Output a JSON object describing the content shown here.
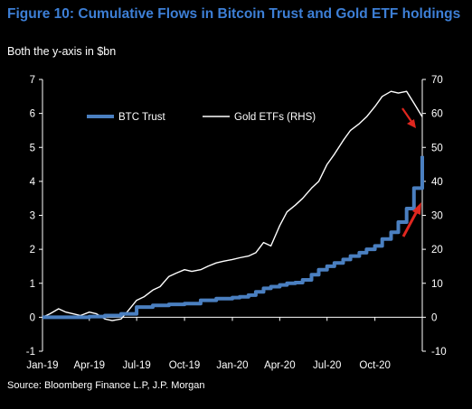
{
  "title": "Figure 10: Cumulative Flows in Bitcoin Trust and Gold ETF holdings",
  "subtitle": "Both the y-axis in $bn",
  "source": "Source: Bloomberg Finance L.P, J.P. Morgan",
  "colors": {
    "btc": "#4a7fc0",
    "gold": "#ffffff",
    "title": "#3d7fd6",
    "arrow": "#e0271f"
  },
  "chart_data": {
    "type": "line",
    "x_range": [
      "2019-01-01",
      "2020-12-31"
    ],
    "x_tick_labels": [
      "Jan-19",
      "Apr-19",
      "Jul-19",
      "Oct-19",
      "Jan-20",
      "Apr-20",
      "Jul-20",
      "Oct-20"
    ],
    "x_tick_dates": [
      "2019-01-01",
      "2019-04-01",
      "2019-07-01",
      "2019-10-01",
      "2020-01-01",
      "2020-04-01",
      "2020-07-01",
      "2020-10-01"
    ],
    "ylim_left": [
      -1,
      7
    ],
    "yticks_left": [
      "-1",
      "0",
      "1",
      "2",
      "3",
      "4",
      "5",
      "6",
      "7"
    ],
    "ylim_right": [
      -10,
      70
    ],
    "yticks_right": [
      "-10",
      "0",
      "10",
      "20",
      "30",
      "40",
      "50",
      "60",
      "70"
    ],
    "legend_position": "top-left",
    "series": [
      {
        "name": "BTC Trust",
        "axis": "left",
        "x": [
          "2019-01-01",
          "2019-02-15",
          "2019-04-01",
          "2019-05-01",
          "2019-06-01",
          "2019-07-01",
          "2019-08-01",
          "2019-09-01",
          "2019-10-01",
          "2019-11-01",
          "2019-12-01",
          "2020-01-01",
          "2020-01-15",
          "2020-02-01",
          "2020-02-15",
          "2020-03-01",
          "2020-03-15",
          "2020-04-01",
          "2020-04-15",
          "2020-05-01",
          "2020-05-15",
          "2020-06-01",
          "2020-06-15",
          "2020-07-01",
          "2020-07-15",
          "2020-08-01",
          "2020-08-15",
          "2020-09-01",
          "2020-09-15",
          "2020-10-01",
          "2020-10-15",
          "2020-11-01",
          "2020-11-15",
          "2020-12-01",
          "2020-12-15",
          "2020-12-31"
        ],
        "y": [
          0.0,
          0.0,
          0.02,
          0.05,
          0.1,
          0.3,
          0.35,
          0.38,
          0.4,
          0.5,
          0.55,
          0.58,
          0.6,
          0.65,
          0.75,
          0.85,
          0.9,
          0.95,
          1.0,
          1.02,
          1.1,
          1.25,
          1.4,
          1.5,
          1.6,
          1.7,
          1.8,
          1.9,
          2.0,
          2.1,
          2.3,
          2.5,
          2.8,
          3.2,
          3.8,
          4.75
        ]
      },
      {
        "name": "Gold ETFs (RHS)",
        "axis": "right",
        "x": [
          "2019-01-01",
          "2019-01-15",
          "2019-02-01",
          "2019-02-15",
          "2019-03-01",
          "2019-03-15",
          "2019-04-01",
          "2019-04-15",
          "2019-05-01",
          "2019-05-15",
          "2019-06-01",
          "2019-06-15",
          "2019-07-01",
          "2019-07-15",
          "2019-08-01",
          "2019-08-15",
          "2019-09-01",
          "2019-09-15",
          "2019-10-01",
          "2019-10-15",
          "2019-11-01",
          "2019-11-15",
          "2019-12-01",
          "2019-12-15",
          "2020-01-01",
          "2020-01-15",
          "2020-02-01",
          "2020-02-15",
          "2020-03-01",
          "2020-03-15",
          "2020-04-01",
          "2020-04-15",
          "2020-05-01",
          "2020-05-15",
          "2020-06-01",
          "2020-06-15",
          "2020-07-01",
          "2020-07-15",
          "2020-08-01",
          "2020-08-15",
          "2020-09-01",
          "2020-09-15",
          "2020-10-01",
          "2020-10-15",
          "2020-11-01",
          "2020-11-15",
          "2020-12-01",
          "2020-12-15",
          "2020-12-31"
        ],
        "y": [
          0,
          1,
          2.5,
          1.5,
          1,
          0.5,
          1.5,
          1,
          -0.5,
          -1,
          -0.5,
          2,
          5,
          6,
          8,
          9,
          12,
          13,
          14,
          13.5,
          14,
          15,
          16,
          16.5,
          17,
          17.5,
          18,
          19,
          22,
          21,
          27,
          31,
          33,
          35,
          38,
          40,
          45,
          48,
          52,
          55,
          57,
          59,
          62,
          65,
          66.5,
          66,
          66.5,
          63,
          59
        ]
      }
    ]
  },
  "annotations": [
    "red-arrow-gold-decline",
    "red-arrow-btc-rise"
  ]
}
